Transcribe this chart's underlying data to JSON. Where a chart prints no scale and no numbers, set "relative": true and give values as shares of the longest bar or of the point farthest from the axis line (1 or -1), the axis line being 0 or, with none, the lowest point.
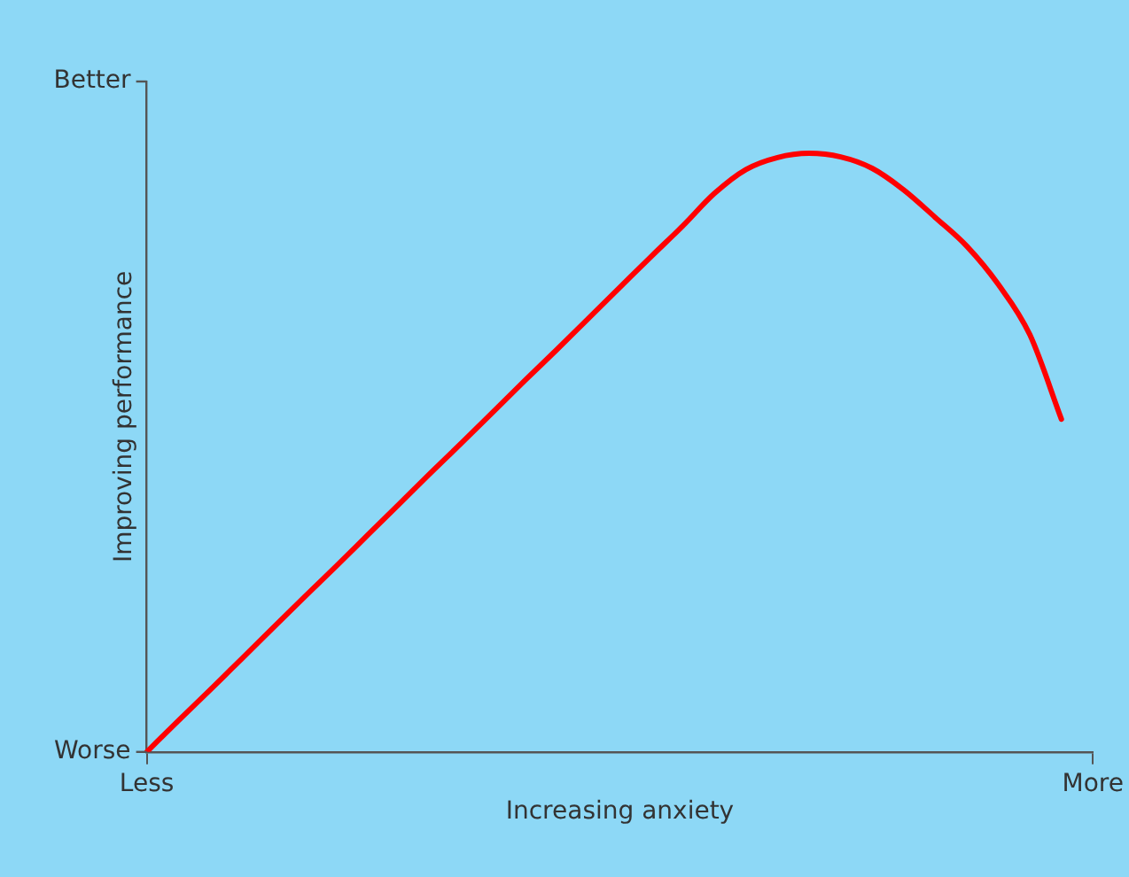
{
  "chart_data": {
    "type": "line",
    "relative": true,
    "xlabel": "Increasing anxiety",
    "ylabel": "Improving performance",
    "annotations": [
      "Better",
      "Worse"
    ],
    "categories": [
      "Less",
      null,
      null,
      null,
      null,
      null,
      null,
      null,
      null,
      null,
      null,
      null,
      null,
      null,
      null,
      null,
      null,
      null,
      null,
      null,
      null,
      null,
      null,
      null,
      null,
      null,
      null,
      null,
      null,
      null,
      "More"
    ],
    "series": [
      {
        "color": "#ff0000",
        "values": [
          0,
          0.052,
          0.103,
          0.155,
          0.207,
          0.259,
          0.31,
          0.362,
          0.414,
          0.466,
          0.517,
          0.569,
          0.621,
          0.672,
          0.724,
          0.776,
          0.828,
          0.879,
          0.933,
          0.973,
          0.993,
          1,
          0.994,
          0.975,
          0.939,
          0.893,
          0.845,
          0.781,
          0.697,
          0.556,
          null
        ]
      }
    ],
    "grid": false,
    "legend": false,
    "marker": "none",
    "line_style": "solid"
  }
}
